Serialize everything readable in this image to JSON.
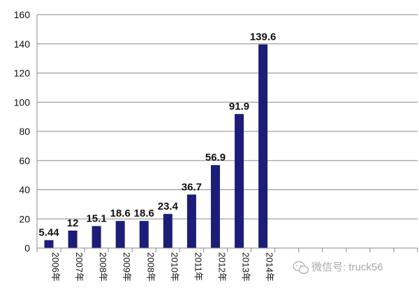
{
  "chart_data": {
    "type": "bar",
    "categories": [
      "2006年",
      "2007年",
      "2008年",
      "2009年",
      "2008年",
      "2010年",
      "2011年",
      "2012年",
      "2013年",
      "2014年"
    ],
    "values": [
      5.44,
      12,
      15.1,
      18.6,
      18.6,
      23.4,
      36.7,
      56.9,
      91.9,
      139.6
    ],
    "data_labels": [
      "5.44",
      "12",
      "15.1",
      "18.6",
      "18.6",
      "23.4",
      "36.7",
      "56.9",
      "91.9",
      "139.6"
    ],
    "empty_slots_after": 6,
    "ylim": [
      0,
      160
    ],
    "yticks": [
      0,
      20,
      40,
      60,
      80,
      100,
      120,
      140,
      160
    ],
    "grid": true,
    "legend": "none",
    "bar_color": "#1b1d78"
  },
  "watermark": {
    "text": "微信号: truck56",
    "icon": "wechat-icon"
  }
}
